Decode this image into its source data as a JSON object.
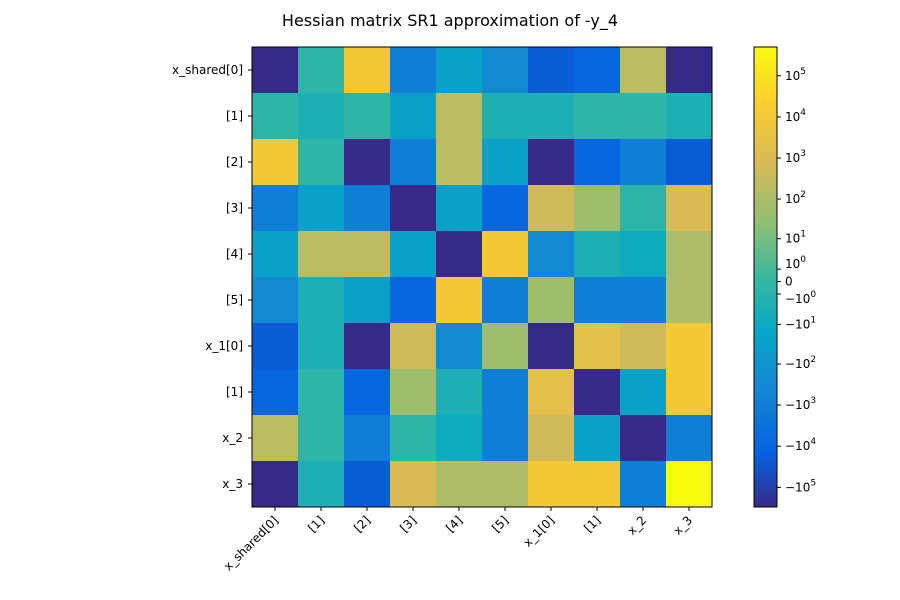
{
  "chart_data": {
    "type": "heatmap",
    "title": "Hessian matrix SR1 approximation of -y_4",
    "row_labels": [
      "x_shared[0]",
      "[1]",
      "[2]",
      "[3]",
      "[4]",
      "[5]",
      "x_1[0]",
      "[1]",
      "x_2",
      "x_3"
    ],
    "col_labels": [
      "x_shared[0]",
      "[1]",
      "[2]",
      "[3]",
      "[4]",
      "[5]",
      "x_1[0]",
      "[1]",
      "x_2",
      "x_3"
    ],
    "values": [
      [
        -300000,
        -0.5,
        10000,
        -1000,
        -30,
        -300,
        -20000,
        -10000,
        200,
        -300000
      ],
      [
        -0.5,
        -3,
        -0.5,
        -30,
        200,
        -3,
        -3,
        -0.5,
        -0.5,
        -3
      ],
      [
        10000,
        -0.5,
        -300000,
        -1000,
        200,
        -30,
        -300000,
        -10000,
        -1000,
        -20000
      ],
      [
        -1000,
        -30,
        -1000,
        -300000,
        -30,
        -10000,
        500,
        50,
        -0.5,
        1000
      ],
      [
        -30,
        200,
        200,
        -30,
        -300000,
        10000,
        -300,
        -3,
        -10,
        100
      ],
      [
        -300,
        -3,
        -30,
        -10000,
        10000,
        -1000,
        50,
        -1000,
        -1000,
        100
      ],
      [
        -20000,
        -3,
        -300000,
        500,
        -300,
        50,
        -300000,
        2000,
        500,
        10000
      ],
      [
        -10000,
        -0.5,
        -10000,
        50,
        -3,
        -1000,
        2000,
        -300000,
        -30,
        10000
      ],
      [
        200,
        -0.5,
        -1000,
        -0.5,
        -10,
        -1000,
        500,
        -30,
        -300000,
        -1000
      ],
      [
        -300000,
        -3,
        -20000,
        1000,
        100,
        100,
        10000,
        10000,
        -1000,
        500000
      ]
    ],
    "colorbar": {
      "scale": "symlog",
      "range": [
        -300000,
        500000
      ],
      "tick_labels": [
        "10^5",
        "10^4",
        "10^3",
        "10^2",
        "10^1",
        "10^0",
        "0",
        "−10^0",
        "−10^1",
        "−10^2",
        "−10^3",
        "−10^4",
        "−10^5"
      ],
      "tick_values": [
        100000,
        10000,
        1000,
        100,
        10,
        1,
        0,
        -1,
        -10,
        -100,
        -1000,
        -10000,
        -100000
      ],
      "colormap": "parula"
    }
  }
}
